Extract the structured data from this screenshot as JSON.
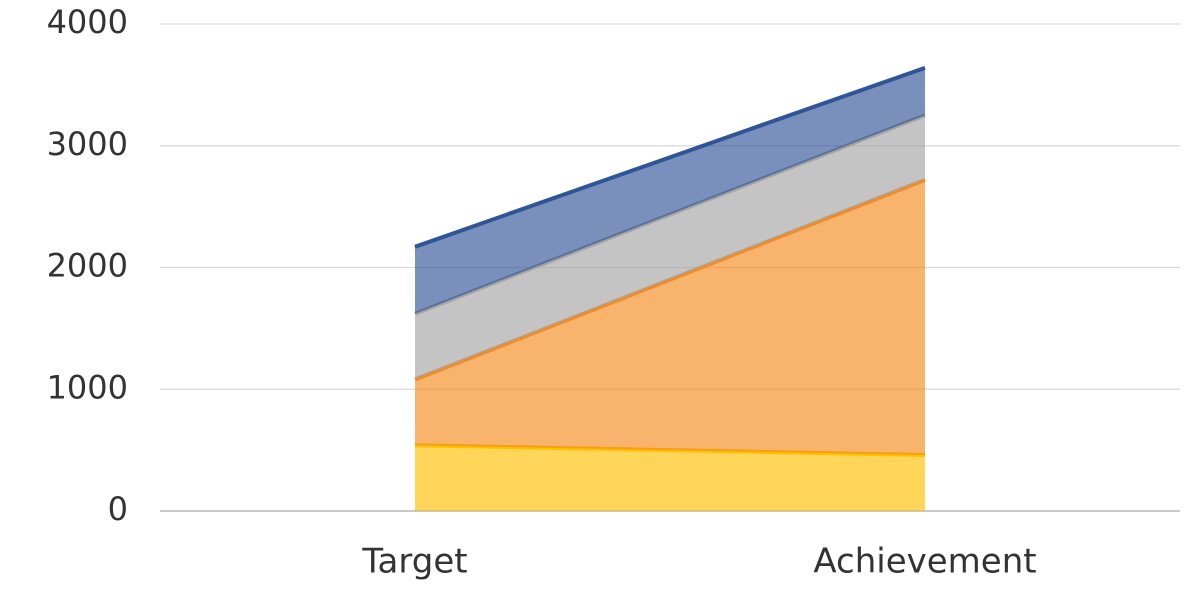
{
  "chart_data": {
    "type": "stacked_area",
    "categories": [
      "Target",
      "Achievement"
    ],
    "series": [
      {
        "color": "#ffc000",
        "values": [
          540,
          460
        ]
      },
      {
        "color": "#f58a1f",
        "values": [
          540,
          2260
        ]
      },
      {
        "color": "#a5a5a5",
        "values": [
          540,
          530
        ]
      },
      {
        "color": "#2f5597",
        "values": [
          550,
          390
        ]
      }
    ],
    "ylim": [
      0,
      4000
    ],
    "yticks": [
      0,
      1000,
      2000,
      3000,
      4000
    ],
    "grid": true
  }
}
